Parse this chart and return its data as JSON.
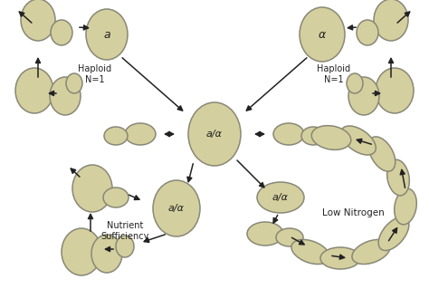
{
  "bg_color": "#ffffff",
  "cell_color": "#d4cf9e",
  "cell_edge_color": "#888877",
  "arrow_color": "#222222",
  "text_color": "#222222",
  "labels": {
    "a": "a",
    "alpha": "α",
    "a_alpha": "a/α",
    "haploid_left": "Haploid\nN=1",
    "haploid_right": "Haploid\nN=1",
    "nutrient": "Nutrient\nSufficiency",
    "low_nitrogen": "Low Nitrogen"
  },
  "figsize": [
    4.74,
    3.19
  ],
  "dpi": 100
}
